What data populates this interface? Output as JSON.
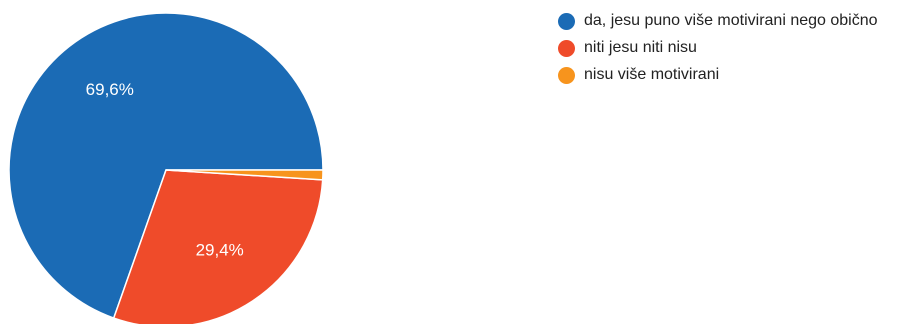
{
  "chart_data": {
    "type": "pie",
    "series": [
      {
        "name": "da, jesu puno više motivirani nego obično",
        "value": 69.6,
        "label": "69,6%",
        "color": "#1b6bb5"
      },
      {
        "name": "niti jesu niti nisu",
        "value": 29.4,
        "label": "29,4%",
        "color": "#ef4b2a"
      },
      {
        "name": "nisu više motivirani",
        "value": 1.0,
        "label": "",
        "color": "#f7941d"
      }
    ],
    "legend_position": "right"
  }
}
